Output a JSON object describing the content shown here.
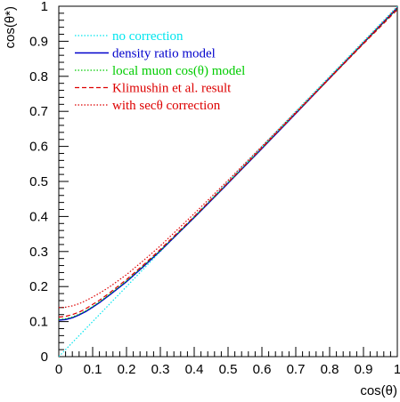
{
  "chart_data": {
    "type": "line",
    "xlabel": "cos(θ)",
    "ylabel": "cos(θ*)",
    "xlim": [
      0,
      1
    ],
    "ylim": [
      0,
      1
    ],
    "xticks": [
      "0",
      "0.1",
      "0.2",
      "0.3",
      "0.4",
      "0.5",
      "0.6",
      "0.7",
      "0.8",
      "0.9",
      "1"
    ],
    "yticks": [
      "0",
      "0.1",
      "0.2",
      "0.3",
      "0.4",
      "0.5",
      "0.6",
      "0.7",
      "0.8",
      "0.9",
      "1"
    ],
    "grid": false,
    "legend_position": "top-left",
    "series": [
      {
        "name": "no correction",
        "color": "#00e5ee",
        "style": "dotted",
        "x": [
          0.0,
          0.1,
          0.2,
          0.3,
          0.4,
          0.5,
          0.6,
          0.7,
          0.8,
          0.9,
          1.0
        ],
        "y": [
          0.0,
          0.1,
          0.2,
          0.3,
          0.4,
          0.5,
          0.6,
          0.7,
          0.8,
          0.9,
          1.0
        ]
      },
      {
        "name": "density ratio model",
        "color": "#0000cc",
        "style": "solid",
        "x": [
          0.0,
          0.02,
          0.04,
          0.06,
          0.08,
          0.1,
          0.12,
          0.15,
          0.2,
          0.25,
          0.3,
          0.4,
          0.5,
          0.6,
          0.7,
          0.8,
          0.9,
          1.0
        ],
        "y": [
          0.104,
          0.106,
          0.111,
          0.119,
          0.129,
          0.141,
          0.154,
          0.176,
          0.214,
          0.257,
          0.302,
          0.397,
          0.495,
          0.594,
          0.694,
          0.795,
          0.895,
          0.995
        ]
      },
      {
        "name": "local muon cos(θ) model",
        "color": "#00cc00",
        "style": "dotted",
        "x": [
          0.0,
          0.02,
          0.04,
          0.06,
          0.08,
          0.1,
          0.12,
          0.15,
          0.2,
          0.25,
          0.3,
          0.4,
          0.5,
          0.6,
          0.7,
          0.8,
          0.9,
          1.0
        ],
        "y": [
          0.106,
          0.108,
          0.113,
          0.121,
          0.131,
          0.143,
          0.156,
          0.178,
          0.216,
          0.259,
          0.303,
          0.398,
          0.496,
          0.595,
          0.695,
          0.795,
          0.895,
          0.993
        ]
      },
      {
        "name": "Klimushin et al. result",
        "color": "#dd0000",
        "style": "dashed",
        "x": [
          0.0,
          0.02,
          0.04,
          0.06,
          0.08,
          0.1,
          0.12,
          0.15,
          0.2,
          0.25,
          0.3,
          0.4,
          0.5,
          0.6,
          0.7,
          0.8,
          0.9,
          1.0
        ],
        "y": [
          0.113,
          0.115,
          0.12,
          0.127,
          0.137,
          0.149,
          0.161,
          0.182,
          0.22,
          0.262,
          0.306,
          0.4,
          0.497,
          0.596,
          0.695,
          0.794,
          0.893,
          0.99
        ]
      },
      {
        "name": "with secθ correction",
        "color": "#dd0000",
        "style": "dotted",
        "x": [
          0.0,
          0.02,
          0.04,
          0.06,
          0.08,
          0.1,
          0.12,
          0.15,
          0.2,
          0.25,
          0.3,
          0.4,
          0.5,
          0.6,
          0.7,
          0.8,
          0.9,
          1.0
        ],
        "y": [
          0.14,
          0.141,
          0.145,
          0.151,
          0.16,
          0.17,
          0.181,
          0.199,
          0.234,
          0.274,
          0.316,
          0.408,
          0.503,
          0.6,
          0.698,
          0.797,
          0.897,
          0.997
        ]
      }
    ]
  }
}
